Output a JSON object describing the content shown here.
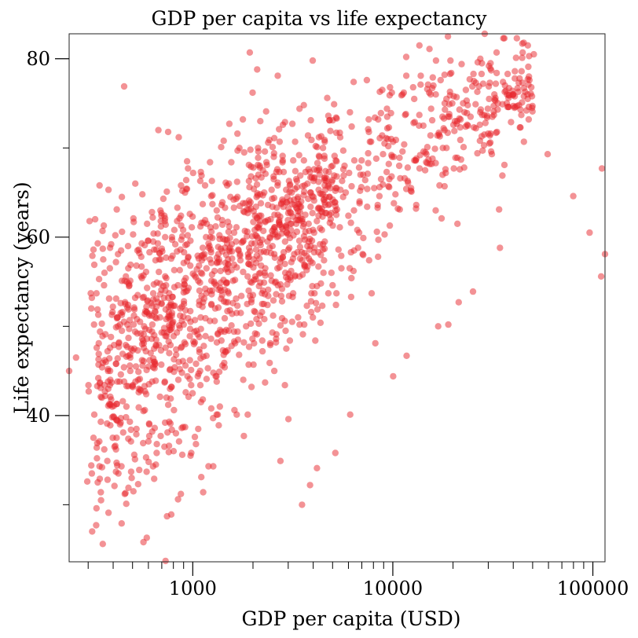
{
  "chart_data": {
    "type": "scatter",
    "title": "GDP per capita vs life expectancy",
    "xlabel": "GDP per capita (USD)",
    "ylabel": "Life expectancy (years)",
    "xscale": "log",
    "xlim": [
      241,
      115000
    ],
    "ylim": [
      23.6,
      82.8
    ],
    "x_ticks": [
      1000,
      10000,
      100000
    ],
    "x_tick_labels": [
      "1000",
      "10000",
      "100000"
    ],
    "y_ticks": [
      40,
      60,
      80
    ],
    "y_tick_labels": [
      "40",
      "60",
      "80"
    ],
    "grid": false,
    "legend": "none",
    "point_color": "#e8262b",
    "point_count": 1700,
    "series": [
      {
        "points": [
          [
            241,
            45.0
          ],
          [
            261,
            46.5
          ],
          [
            297,
            32.6
          ],
          [
            331,
            36.4
          ],
          [
            335,
            59.3
          ],
          [
            344,
            49.4
          ],
          [
            352,
            34.2
          ],
          [
            362,
            56.0
          ],
          [
            386,
            58.8
          ],
          [
            404,
            47.9
          ],
          [
            410,
            60.2
          ],
          [
            423,
            58.1
          ],
          [
            457,
            31.2
          ],
          [
            477,
            31.9
          ],
          [
            533,
            32.3
          ],
          [
            552,
            55.6
          ],
          [
            591,
            61.5
          ],
          [
            634,
            59.5
          ],
          [
            689,
            63.0
          ],
          [
            731,
            23.7
          ],
          [
            744,
            28.7
          ],
          [
            761,
            36.6
          ],
          [
            844,
            30.6
          ],
          [
            872,
            31.2
          ],
          [
            928,
            65.4
          ],
          [
            947,
            67.7
          ],
          [
            1103,
            33.1
          ],
          [
            1199,
            34.3
          ],
          [
            1428,
            70.8
          ],
          [
            1801,
            37.7
          ],
          [
            1780,
            73.2
          ],
          [
            2327,
            74.1
          ],
          [
            2743,
            34.9
          ],
          [
            3009,
            39.6
          ],
          [
            3518,
            30.0
          ],
          [
            3856,
            32.2
          ],
          [
            4178,
            34.1
          ],
          [
            5163,
            35.8
          ],
          [
            6123,
            40.1
          ],
          [
            7117,
            58.0
          ],
          [
            8176,
            48.1
          ],
          [
            10037,
            44.4
          ],
          [
            11723,
            46.7
          ],
          [
            16853,
            50.0
          ],
          [
            18939,
            50.2
          ],
          [
            21342,
            52.7
          ],
          [
            25162,
            53.9
          ],
          [
            34321,
            58.8
          ],
          [
            33967,
            63.1
          ],
          [
            59400,
            69.3
          ],
          [
            79800,
            64.6
          ],
          [
            96300,
            60.5
          ],
          [
            110000,
            55.6
          ],
          [
            111000,
            67.7
          ],
          [
            115000,
            58.1
          ],
          [
            28800,
            82.8
          ],
          [
            36100,
            82.3
          ],
          [
            41700,
            82.3
          ],
          [
            48000,
            80.3
          ],
          [
            50700,
            80.5
          ]
        ]
      }
    ]
  }
}
